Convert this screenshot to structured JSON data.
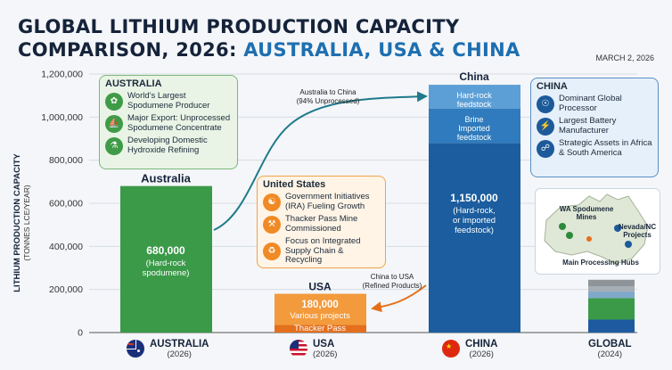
{
  "title": {
    "line1": "GLOBAL LITHIUM PRODUCTION CAPACITY",
    "line2_prefix": "COMPARISON, 2026: ",
    "line2_highlight": "AUSTRALIA, USA & CHINA"
  },
  "date": "MARCH 2, 2026",
  "chart_data": {
    "type": "bar",
    "ylabel": "LITHIUM PRODUCTION CAPACITY",
    "ylabel_unit": "(TONNES LCE/YEAR)",
    "ylim": [
      0,
      1200000
    ],
    "yticks": [
      0,
      200000,
      400000,
      600000,
      800000,
      1000000,
      1200000
    ],
    "ytick_labels": [
      "0",
      "200,000",
      "400,000",
      "600,000",
      "800,000",
      "1,000,000",
      "1,200,000"
    ],
    "categories": [
      "AUSTRALIA",
      "USA",
      "CHINA",
      "GLOBAL"
    ],
    "category_years": [
      "(2026)",
      "(2026)",
      "(2026)",
      "(2024)"
    ],
    "bars": [
      {
        "name": "Australia",
        "value": 680000,
        "value_label": "680,000",
        "note": "(Hard-rock spodumene)",
        "color": "#3a9a48"
      },
      {
        "name": "USA",
        "value": 180000,
        "value_label": "180,000",
        "note": "Various projects",
        "segments": [
          {
            "label": "Thacker Pass",
            "value": 35000,
            "color": "#e46f1c"
          },
          {
            "label": "",
            "value": 145000,
            "color": "#f29a3c"
          }
        ]
      },
      {
        "name": "China",
        "value": 1150000,
        "value_label": "1,150,000",
        "note": "(Hard-rock, or imported feedstock)",
        "segments": [
          {
            "label": "",
            "value": 880000,
            "color": "#1b5d9e"
          },
          {
            "label": "Brine Imported feedstock",
            "value": 160000,
            "color": "#2f7bbd"
          },
          {
            "label": "Hard-rock feedstock",
            "value": 110000,
            "color": "#5c9fd6"
          }
        ]
      },
      {
        "name": "Global",
        "value": 245000,
        "segments": [
          {
            "value": 60000,
            "color": "#1e5aa0"
          },
          {
            "value": 100000,
            "color": "#3a9a48"
          },
          {
            "value": 30000,
            "color": "#7fa8c9"
          },
          {
            "value": 25000,
            "color": "#a5adb5"
          },
          {
            "value": 30000,
            "color": "#8f9499"
          }
        ]
      }
    ],
    "annotations": [
      {
        "text": "Australia to China",
        "sub": "(94% Unprocessed)"
      },
      {
        "text": "China to USA",
        "sub": "(Refined Products)"
      }
    ]
  },
  "australia_panel": {
    "heading": "AUSTRALIA",
    "items": [
      "World's Largest Spodumene Producer",
      "Major Export: Unprocessed Spodumene Concentrate",
      "Developing Domestic Hydroxide Refining"
    ],
    "icons": [
      "leaf-icon",
      "ship-icon",
      "flask-icon"
    ]
  },
  "us_panel": {
    "heading": "United States",
    "items": [
      "Government Initiatives (IRA) Fueling Growth",
      "Thacker Pass Mine Commissioned",
      "Focus on Integrated Supply Chain & Recycling"
    ],
    "icons": [
      "handshake-icon",
      "pickaxe-icon",
      "recycle-icon"
    ]
  },
  "china_panel": {
    "heading": "CHINA",
    "items": [
      "Dominant Global Processor",
      "Largest Battery Manufacturer",
      "Strategic Assets in Africa & South America"
    ],
    "icons": [
      "globe-icon",
      "battery-icon",
      "world-icon"
    ]
  },
  "map": {
    "labels": [
      "WA Spodumene Mines",
      "Nevada/NC Projects",
      "Main Processing Hubs"
    ]
  }
}
